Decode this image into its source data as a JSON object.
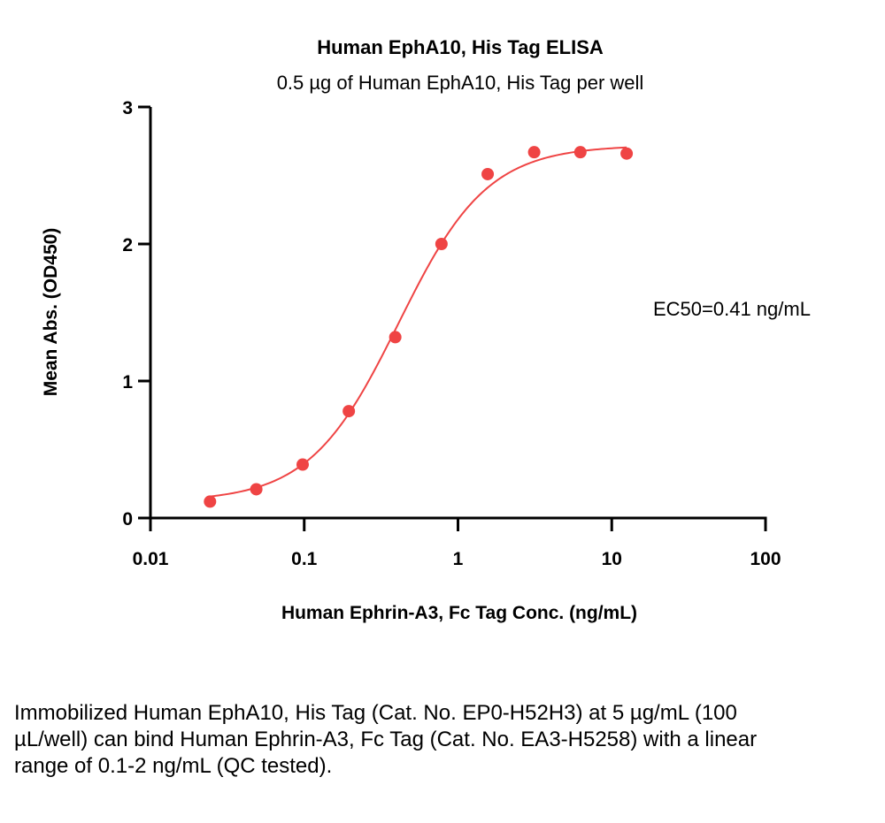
{
  "chart_data": {
    "type": "scatter",
    "title": "Human EphA10, His Tag ELISA",
    "subtitle": "0.5 µg of Human EphA10, His Tag per well",
    "xlabel": "Human Ephrin-A3, Fc Tag Conc. (ng/mL)",
    "ylabel": "Mean Abs. (OD450)",
    "x_scale": "log",
    "xlim": [
      0.01,
      100
    ],
    "ylim": [
      0,
      3
    ],
    "x_ticks": [
      0.01,
      0.1,
      1,
      10,
      100
    ],
    "x_tick_labels": [
      "0.01",
      "0.1",
      "1",
      "10",
      "100"
    ],
    "y_ticks": [
      0,
      1,
      2,
      3
    ],
    "y_tick_labels": [
      "0",
      "1",
      "2",
      "3"
    ],
    "grid": false,
    "color": "#ef4444",
    "series": [
      {
        "x": [
          0.0244,
          0.0488,
          0.0977,
          0.195,
          0.391,
          0.781,
          1.56,
          3.13,
          6.25,
          12.5
        ],
        "y": [
          0.12,
          0.21,
          0.39,
          0.78,
          1.32,
          2.0,
          2.51,
          2.67,
          2.67,
          2.66
        ]
      }
    ],
    "fit": {
      "model": "4PL",
      "bottom": 0.12,
      "top": 2.72,
      "ec50": 0.41,
      "hill": 1.5
    },
    "annotation": "EC50=0.41 ng/mL"
  },
  "caption": "Immobilized Human EphA10, His Tag (Cat. No. EP0-H52H3) at 5 µg/mL (100 µL/well) can bind Human Ephrin-A3, Fc Tag (Cat. No. EA3-H5258) with a linear range of 0.1-2 ng/mL (QC tested)."
}
